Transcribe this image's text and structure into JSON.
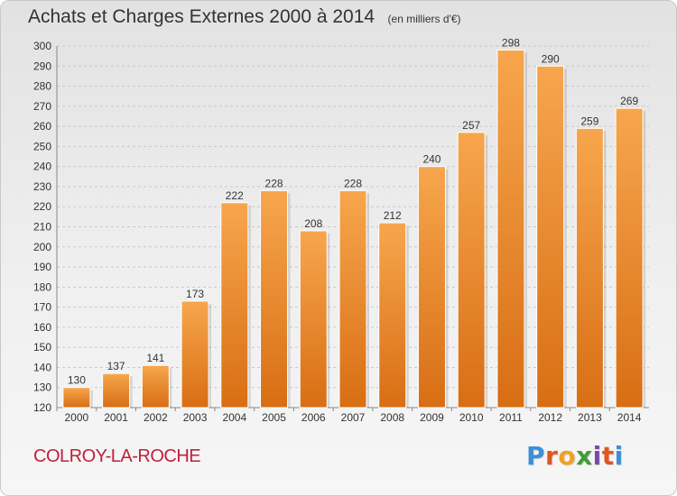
{
  "header": {
    "title": "Achats et Charges Externes 2000 à 2014",
    "unit": "(en milliers d'€)"
  },
  "footer": {
    "commune": "COLROY-LA-ROCHE",
    "logo": "Proxiti"
  },
  "colors": {
    "bar_top": "#f7a64d",
    "bar_bottom": "#d86e14",
    "commune_text": "#c0203c",
    "logo_letters": [
      "#3d8fd6",
      "#e2551f",
      "#f2a023",
      "#3f9e36",
      "#7b4aa8",
      "#e2551f",
      "#3d8fd6"
    ]
  },
  "chart_data": {
    "type": "bar",
    "title": "Achats et Charges Externes 2000 à 2014",
    "subtitle": "(en milliers d'€)",
    "xlabel": "",
    "ylabel": "",
    "categories": [
      "2000",
      "2001",
      "2002",
      "2003",
      "2004",
      "2005",
      "2006",
      "2007",
      "2008",
      "2009",
      "2010",
      "2011",
      "2012",
      "2013",
      "2014"
    ],
    "values": [
      130,
      137,
      141,
      173,
      222,
      228,
      208,
      228,
      212,
      240,
      257,
      298,
      290,
      259,
      269
    ],
    "ylim": [
      120,
      300
    ],
    "yticks": [
      120,
      130,
      140,
      150,
      160,
      170,
      180,
      190,
      200,
      210,
      220,
      230,
      240,
      250,
      260,
      270,
      280,
      290,
      300
    ],
    "grid": true,
    "data_labels": true
  }
}
